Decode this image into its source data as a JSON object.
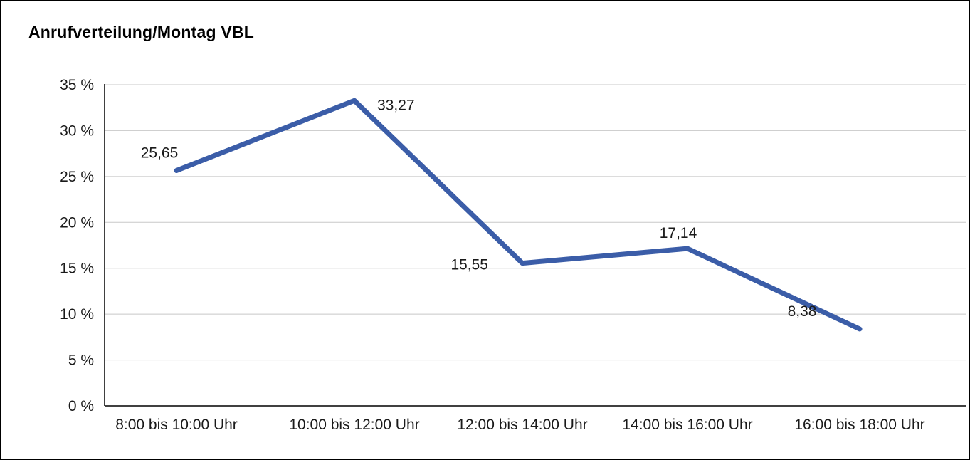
{
  "title": "Anrufverteilung/Montag VBL",
  "chart_data": {
    "type": "line",
    "title": "Anrufverteilung/Montag VBL",
    "categories": [
      "8:00 bis 10:00 Uhr",
      "10:00 bis 12:00 Uhr",
      "12:00 bis 14:00 Uhr",
      "14:00 bis 16:00 Uhr",
      "16:00 bis 18:00 Uhr"
    ],
    "values": [
      25.65,
      33.27,
      15.55,
      17.14,
      8.38
    ],
    "value_labels": [
      "25,65",
      "33,27",
      "15,55",
      "17,14",
      "8,38"
    ],
    "xlabel": "",
    "ylabel": "",
    "ylim": [
      0,
      35
    ],
    "ytick_step": 5,
    "ytick_labels": [
      "0 %",
      "5 %",
      "10 %",
      "15 %",
      "20 %",
      "25 %",
      "30 %",
      "35 %"
    ],
    "grid": true,
    "legend_position": "none",
    "unit": "percent"
  },
  "colors": {
    "line": "#3b5da8",
    "grid": "#c8c8c8",
    "axis": "#000000",
    "label_text": "#1a1a1a",
    "background": "#ffffff",
    "border": "#000000"
  }
}
